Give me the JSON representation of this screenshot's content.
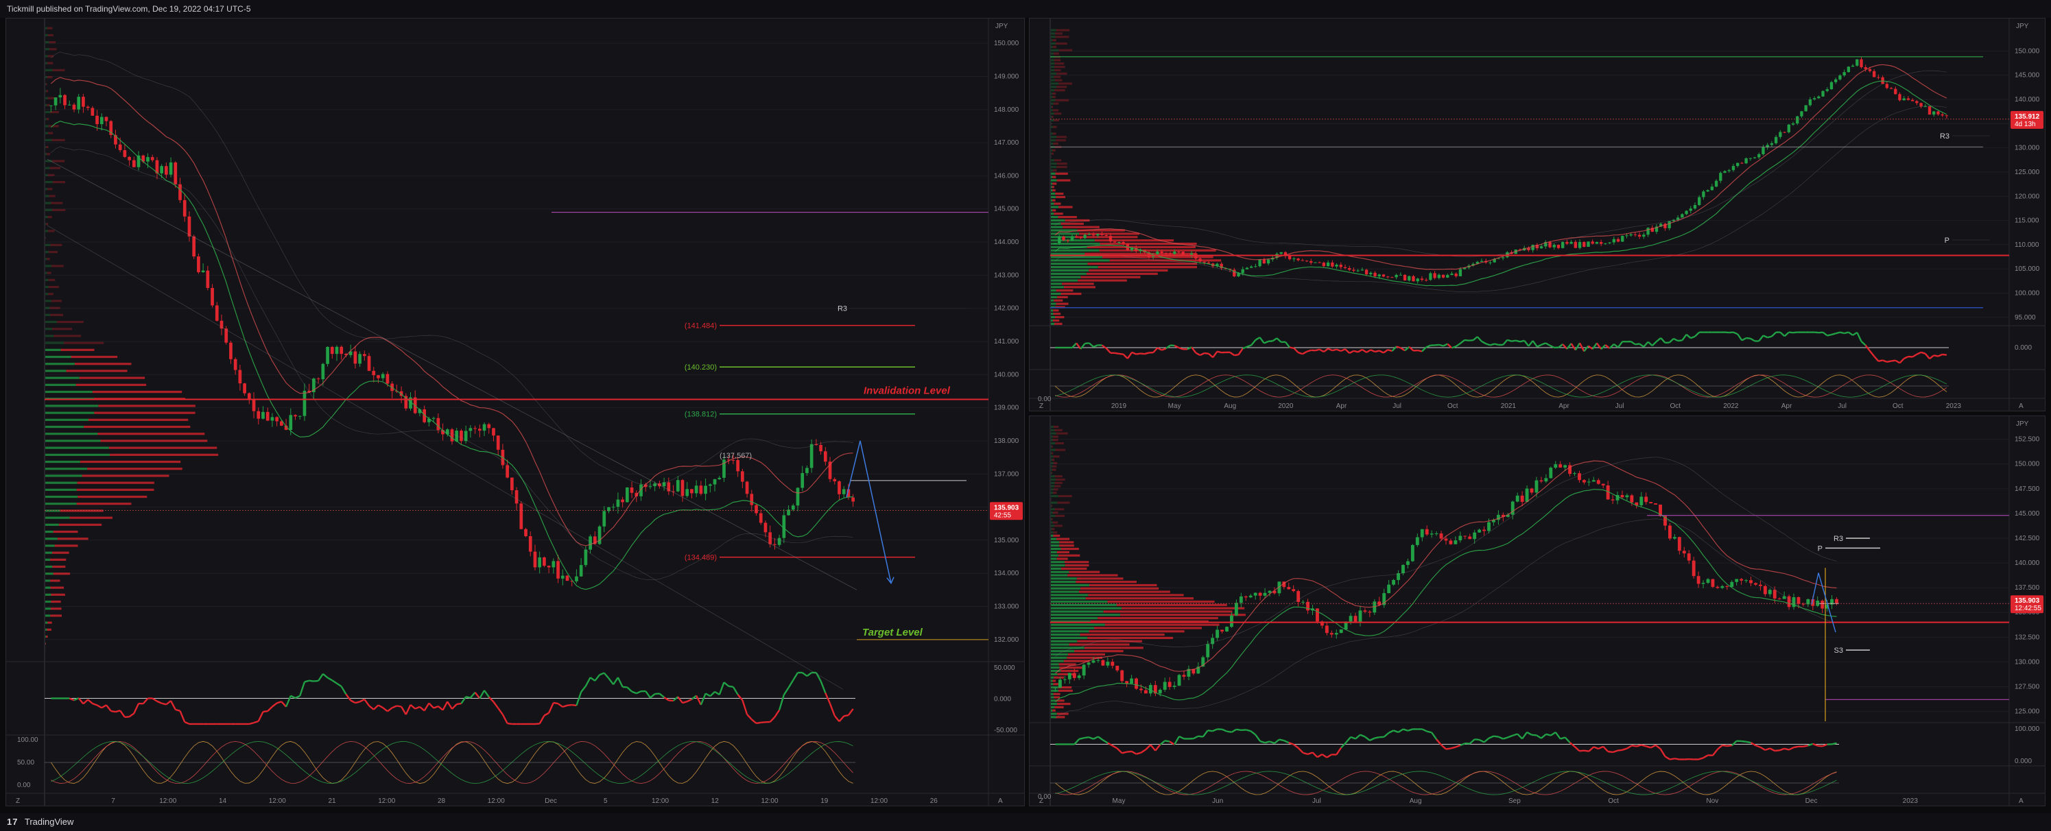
{
  "header": {
    "title": "Tickmill published on TradingView.com, Dec 19, 2022 04:17 UTC-5"
  },
  "footer": {
    "brand": "TradingView"
  },
  "colors": {
    "up": "#22a045",
    "down": "#e0262e",
    "bg": "#131318",
    "grid": "#1e1e24",
    "price_tag": "#e0262e"
  },
  "chart_data": [
    {
      "type": "candlestick",
      "id": "left",
      "currency": "JPY",
      "ylim": [
        131.5,
        150.5
      ],
      "y_ticks": [
        "150.000",
        "149.000",
        "148.000",
        "147.000",
        "146.000",
        "145.000",
        "144.000",
        "143.000",
        "142.000",
        "141.000",
        "140.000",
        "139.000",
        "138.000",
        "137.000",
        "136.000",
        "135.000",
        "134.000",
        "133.000",
        "132.000"
      ],
      "x_ticks": [
        "7",
        "12:00",
        "14",
        "12:00",
        "21",
        "12:00",
        "28",
        "12:00",
        "Dec",
        "5",
        "12:00",
        "12",
        "12:00",
        "19",
        "12:00",
        "26"
      ],
      "price_label": {
        "value": "135.903",
        "countdown": "42:55"
      },
      "levels": [
        {
          "label": "R3",
          "value": 142.0
        },
        {
          "label": "(141.484)",
          "value": 141.484
        },
        {
          "label": "(140.230)",
          "value": 140.23
        },
        {
          "label": "(138.812)",
          "value": 138.812
        },
        {
          "label": "(134.489)",
          "value": 134.489
        }
      ],
      "annotations": {
        "invalidation": "Invalidation Level",
        "target": "Target Level",
        "extra": "(137.567)"
      },
      "osc1_ticks": [
        "50.000",
        "0.000",
        "-50.000"
      ],
      "osc2_ticks": [
        "100.00",
        "50.00",
        "0.00"
      ],
      "nav": [
        "Z",
        "A"
      ]
    },
    {
      "type": "candlestick",
      "id": "top-right",
      "currency": "JPY",
      "ylim": [
        93,
        155
      ],
      "y_ticks": [
        "150.000",
        "145.000",
        "140.000",
        "135.000",
        "130.000",
        "125.000",
        "120.000",
        "115.000",
        "110.000",
        "105.000",
        "100.000",
        "95.000"
      ],
      "x_ticks": [
        "2019",
        "May",
        "Aug",
        "2020",
        "Apr",
        "Jul",
        "Oct",
        "2021",
        "Apr",
        "Jul",
        "Oct",
        "2022",
        "Apr",
        "Jul",
        "Oct",
        "2023"
      ],
      "price_label": {
        "value": "135.912",
        "countdown": "4d 13h"
      },
      "levels": [
        {
          "label": "R3",
          "value": 132.5
        },
        {
          "label": "P",
          "value": 111.0
        }
      ],
      "osc1_ticks": [
        "0.000"
      ],
      "osc2_ticks": [
        "0.00"
      ],
      "nav": [
        "Z",
        "A"
      ]
    },
    {
      "type": "candlestick",
      "id": "bottom-right",
      "currency": "JPY",
      "ylim": [
        124,
        154
      ],
      "y_ticks": [
        "152.500",
        "150.000",
        "147.500",
        "145.000",
        "142.500",
        "140.000",
        "137.500",
        "135.000",
        "132.500",
        "130.000",
        "127.500",
        "125.000"
      ],
      "x_ticks": [
        "May",
        "Jun",
        "Jul",
        "Aug",
        "Sep",
        "Oct",
        "Nov",
        "Dec",
        "2023"
      ],
      "price_label": {
        "value": "135.903",
        "countdown": "12:42:55"
      },
      "levels": [
        {
          "label": "R3",
          "value": 142.5
        },
        {
          "label": "P",
          "value": 141.5
        },
        {
          "label": "S3",
          "value": 131.2
        }
      ],
      "osc1_ticks": [
        "100.000",
        "0.000"
      ],
      "osc2_ticks": [
        "0.00"
      ],
      "nav": [
        "Z",
        "A"
      ]
    }
  ]
}
